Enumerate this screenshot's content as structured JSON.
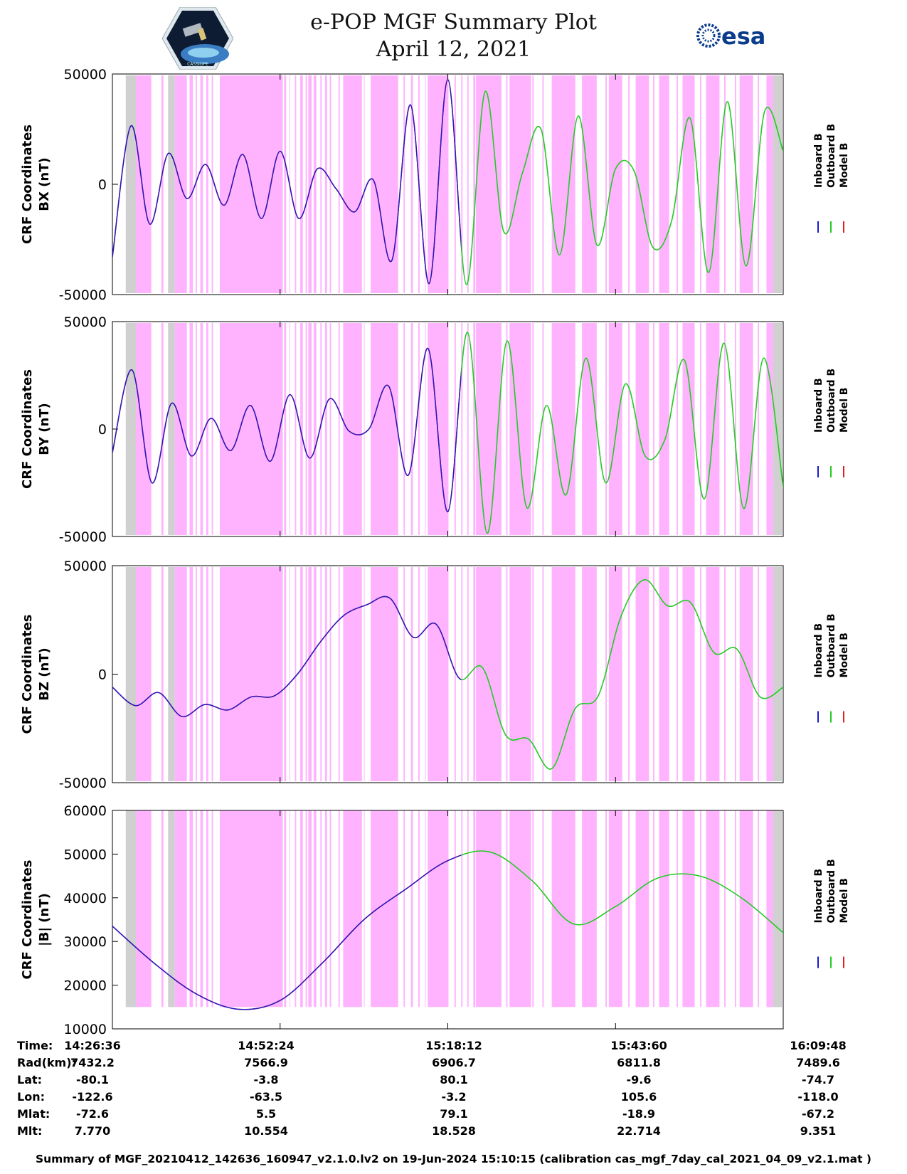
{
  "header": {
    "title_line1": "e-POP MGF Summary Plot",
    "title_line2": "April 12, 2021",
    "logo_left": "cassiope-mission-logo",
    "logo_right_text": "esa"
  },
  "colors": {
    "inboard": "#1a1acc",
    "outboard": "#22cc22",
    "model": "#dd2222",
    "magenta_band": "#ffb3ff",
    "gray_band": "#d0d0d0"
  },
  "legend": [
    "Inboard B",
    "Outboard B",
    "Model B"
  ],
  "chart_data": [
    {
      "type": "line",
      "ylabel_line1": "CRF Coordinates",
      "ylabel_line2": "BX (nT)",
      "ylim": [
        -50000,
        50000
      ],
      "yticks": [
        "50000",
        "0",
        "-50000"
      ],
      "ytick_values": [
        50000,
        0,
        -50000
      ],
      "x_minutes": [
        0,
        2,
        4,
        6,
        8,
        10,
        12,
        14,
        16,
        18,
        20,
        22,
        24,
        26,
        28,
        30,
        32,
        34,
        36,
        38,
        40,
        42,
        44,
        46,
        48,
        50,
        52,
        54,
        56,
        58,
        60,
        62,
        64,
        66,
        68,
        70,
        72,
        74,
        76,
        78,
        80,
        82,
        84,
        86,
        88,
        90,
        92,
        94,
        96,
        98,
        100,
        102,
        104
      ],
      "series": [
        {
          "name": "Inboard B",
          "color_key": "inboard",
          "values": [
            -33000,
            26500,
            -18000,
            14000,
            -6500,
            9000,
            -9500,
            13500,
            -15500,
            15000,
            -15500,
            7000,
            -2000,
            -12500,
            2000,
            -34500,
            36000,
            -45000,
            47500,
            -45500,
            42000,
            -21500,
            5000,
            25000,
            -32000,
            31000,
            -27500,
            7000,
            6000,
            -28500,
            -17000,
            30000,
            -40000,
            37500,
            -37000,
            33000,
            15000
          ],
          "x_idx": [
            0,
            1,
            2,
            3,
            4,
            5,
            6,
            7,
            8,
            9,
            10,
            11,
            12,
            13,
            14,
            15,
            16,
            17,
            18,
            19,
            20,
            21,
            22,
            23,
            24,
            25,
            26,
            27,
            28,
            29,
            30,
            31,
            32,
            33,
            34,
            35,
            36
          ]
        },
        {
          "name": "Outboard B",
          "color_key": "outboard"
        },
        {
          "name": "Model B",
          "color_key": "model"
        }
      ]
    },
    {
      "type": "line",
      "ylabel_line1": "CRF Coordinates",
      "ylabel_line2": "BY (nT)",
      "ylim": [
        -50000,
        50000
      ],
      "yticks": [
        "50000",
        "0",
        "-50000"
      ],
      "ytick_values": [
        50000,
        0,
        -50000
      ],
      "series": [
        {
          "name": "Inboard B",
          "color_key": "inboard",
          "values": [
            -11000,
            27500,
            -25000,
            12000,
            -12500,
            5000,
            -10000,
            11000,
            -15000,
            16000,
            -13500,
            14000,
            -1000,
            0,
            20000,
            -21500,
            37500,
            -38500,
            45000,
            -48500,
            41000,
            -36500,
            11000,
            -30500,
            33000,
            -25000,
            21000,
            -12500,
            -5000,
            32000,
            -32500,
            40000,
            -37000,
            33000,
            -27000
          ],
          "x_idx": [
            0,
            1,
            2,
            3,
            4,
            5,
            6,
            7,
            8,
            9,
            10,
            11,
            12,
            13,
            14,
            15,
            16,
            17,
            18,
            19,
            20,
            21,
            22,
            23,
            24,
            25,
            26,
            27,
            28,
            29,
            30,
            31,
            32,
            33,
            34
          ]
        },
        {
          "name": "Outboard B",
          "color_key": "outboard"
        },
        {
          "name": "Model B",
          "color_key": "model"
        }
      ]
    },
    {
      "type": "line",
      "ylabel_line1": "CRF Coordinates",
      "ylabel_line2": "BZ (nT)",
      "ylim": [
        -50000,
        50000
      ],
      "yticks": [
        "50000",
        "0",
        "-50000"
      ],
      "ytick_values": [
        50000,
        0,
        -50000
      ],
      "series": [
        {
          "name": "Inboard B",
          "color_key": "inboard",
          "values": [
            -6000,
            -14500,
            -8500,
            -19500,
            -14000,
            -16500,
            -10500,
            -10000,
            0,
            15000,
            27000,
            32000,
            35000,
            17000,
            23000,
            -2000,
            3000,
            -28000,
            -30000,
            -43500,
            -16000,
            -10000,
            27000,
            43500,
            31500,
            33000,
            10000,
            11500,
            -10500,
            -6000
          ],
          "x_idx": [
            0,
            1,
            2,
            3,
            4,
            5,
            6,
            7,
            8,
            9,
            10,
            11,
            12,
            13,
            14,
            15,
            16,
            17,
            18,
            19,
            20,
            21,
            22,
            23,
            24,
            25,
            26,
            27,
            28,
            29
          ]
        },
        {
          "name": "Outboard B",
          "color_key": "outboard"
        },
        {
          "name": "Model B",
          "color_key": "model"
        }
      ]
    },
    {
      "type": "line",
      "ylabel_line1": "CRF Coordinates",
      "ylabel_line2": "|B| (nT)",
      "ylim": [
        10000,
        60000
      ],
      "yticks": [
        "60000",
        "50000",
        "40000",
        "30000",
        "20000",
        "10000"
      ],
      "ytick_values": [
        60000,
        50000,
        40000,
        30000,
        20000,
        10000
      ],
      "series": [
        {
          "name": "Inboard B",
          "color_key": "inboard",
          "values": [
            33500,
            25000,
            18000,
            14500,
            16500,
            25000,
            35000,
            42000,
            48500,
            50500,
            44000,
            34000,
            38000,
            44500,
            45000,
            40000,
            32000
          ],
          "x_idx": [
            0,
            1,
            2,
            3,
            4,
            5,
            6,
            7,
            8,
            9,
            10,
            11,
            12,
            13,
            14,
            15,
            16
          ]
        },
        {
          "name": "Outboard B",
          "color_key": "outboard"
        },
        {
          "name": "Model B",
          "color_key": "model"
        }
      ]
    }
  ],
  "x_axis": {
    "tick_labels": [
      "14:26:36",
      "14:52:24",
      "15:18:12",
      "15:43:60",
      "16:09:48"
    ]
  },
  "footer": {
    "rows": [
      {
        "label": "Time:",
        "values": [
          "14:26:36",
          "14:52:24",
          "15:18:12",
          "15:43:60",
          "16:09:48"
        ]
      },
      {
        "label": "Rad(km):",
        "values": [
          "7432.2",
          "7566.9",
          "6906.7",
          "6811.8",
          "7489.6"
        ]
      },
      {
        "label": "Lat:",
        "values": [
          "-80.1",
          "-3.8",
          "80.1",
          "-9.6",
          "-74.7"
        ]
      },
      {
        "label": "Lon:",
        "values": [
          "-122.6",
          "-63.5",
          "-3.2",
          "105.6",
          "-118.0"
        ]
      },
      {
        "label": "Mlat:",
        "values": [
          "-72.6",
          "5.5",
          "79.1",
          "-18.9",
          "-67.2"
        ]
      },
      {
        "label": "Mlt:",
        "values": [
          "7.770",
          "10.554",
          "18.528",
          "22.714",
          "9.351"
        ]
      }
    ],
    "summary": "Summary of MGF_20210412_142636_160947_v2.1.0.lv2 on 19-Jun-2024 15:10:15 (calibration cas_mgf_7day_cal_2021_04_09_v2.1.mat )"
  }
}
